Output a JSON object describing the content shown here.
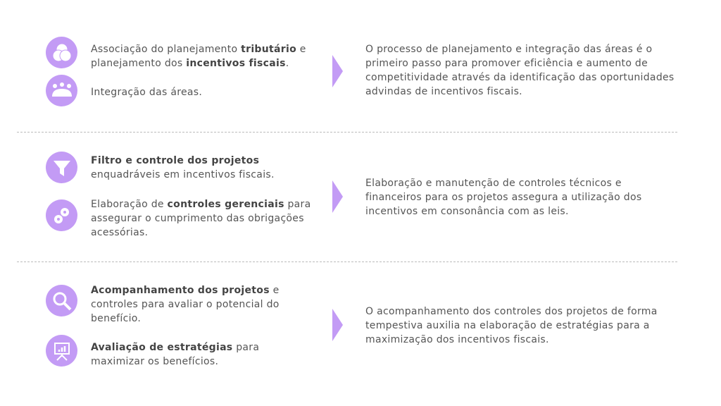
{
  "accent": "#c39bf5",
  "rows": [
    {
      "items": [
        {
          "icon": "venn-circles-icon",
          "parts": [
            {
              "t": "Associação do planejamento "
            },
            {
              "b": "tributário"
            },
            {
              "t": " e planejamento dos "
            },
            {
              "b": "incentivos fiscais"
            },
            {
              "t": "."
            }
          ]
        },
        {
          "icon": "people-meeting-icon",
          "parts": [
            {
              "t": "Integração das áreas."
            }
          ]
        }
      ],
      "description": "O processo de planejamento e integração das áreas é o primeiro passo para promover eficiência e aumento de competitividade através da identificação das oportunidades advindas de incentivos fiscais."
    },
    {
      "items": [
        {
          "icon": "funnel-icon",
          "parts": [
            {
              "b": "Filtro e controle dos projetos"
            },
            {
              "t": " enquadráveis em incentivos fiscais."
            }
          ]
        },
        {
          "icon": "gears-icon",
          "parts": [
            {
              "t": "Elaboração de "
            },
            {
              "b": "controles gerenciais"
            },
            {
              "t": " para assegurar o cumprimento das obrigações acessórias."
            }
          ]
        }
      ],
      "description": "Elaboração e manutenção de controles técnicos e financeiros para os projetos assegura a utilização dos incentivos em consonância com as leis."
    },
    {
      "items": [
        {
          "icon": "magnifier-icon",
          "parts": [
            {
              "b": "Acompanhamento dos projetos"
            },
            {
              "t": " e controles para avaliar o potencial do benefício."
            }
          ]
        },
        {
          "icon": "presentation-chart-icon",
          "parts": [
            {
              "b": "Avaliação de estratégias"
            },
            {
              "t": " para maximizar os benefícios."
            }
          ]
        }
      ],
      "description": "O acompanhamento dos controles dos projetos de forma tempestiva auxilia na elaboração de estratégias para a maximização dos incentivos fiscais."
    }
  ]
}
